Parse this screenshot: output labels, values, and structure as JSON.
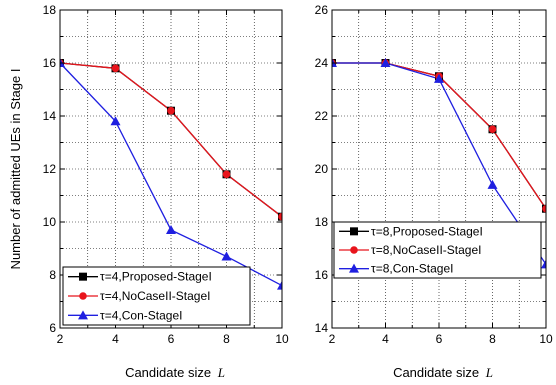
{
  "chart_data": [
    {
      "type": "line",
      "title": "",
      "xlabel": "Candidate size",
      "xlabel_symbol": "L",
      "ylabel": "Number of admitted UEs in Stage I",
      "x": [
        2,
        4,
        6,
        8,
        10
      ],
      "xticks": [
        "2",
        "4",
        "6",
        "8",
        "10"
      ],
      "xlim": [
        2,
        10
      ],
      "ylim": [
        6,
        18
      ],
      "yticks": [
        "6",
        "8",
        "10",
        "12",
        "14",
        "16",
        "18"
      ],
      "grid": true,
      "legend": "bottom-left",
      "series": [
        {
          "name": "τ=4,Proposed-StageI",
          "marker": "square",
          "color": "#000000",
          "values": [
            16.0,
            15.8,
            14.2,
            11.8,
            10.2
          ]
        },
        {
          "name": "τ=4,NoCaseII-StageI",
          "marker": "circle",
          "color": "#e8141c",
          "values": [
            16.0,
            15.8,
            14.2,
            11.8,
            10.2
          ]
        },
        {
          "name": "τ=4,Con-StageI",
          "marker": "triangle",
          "color": "#1f1fe0",
          "values": [
            16.0,
            13.8,
            9.7,
            8.7,
            7.6
          ]
        }
      ]
    },
    {
      "type": "line",
      "title": "",
      "xlabel": "Candidate size",
      "xlabel_symbol": "L",
      "ylabel": "",
      "x": [
        2,
        4,
        6,
        8,
        10
      ],
      "xticks": [
        "2",
        "4",
        "6",
        "8",
        "10"
      ],
      "xlim": [
        2,
        10
      ],
      "ylim": [
        14,
        26
      ],
      "yticks": [
        "14",
        "16",
        "18",
        "20",
        "22",
        "24",
        "26"
      ],
      "grid": true,
      "legend": "bottom-left",
      "series": [
        {
          "name": "τ=8,Proposed-StageI",
          "marker": "square",
          "color": "#000000",
          "values": [
            24.0,
            24.0,
            23.5,
            21.5,
            18.5
          ]
        },
        {
          "name": "τ=8,NoCaseII-StageI",
          "marker": "circle",
          "color": "#e8141c",
          "values": [
            24.0,
            24.0,
            23.5,
            21.5,
            18.5
          ]
        },
        {
          "name": "τ=8,Con-StageI",
          "marker": "triangle",
          "color": "#1f1fe0",
          "values": [
            24.0,
            24.0,
            23.4,
            19.4,
            16.4
          ]
        }
      ]
    }
  ]
}
